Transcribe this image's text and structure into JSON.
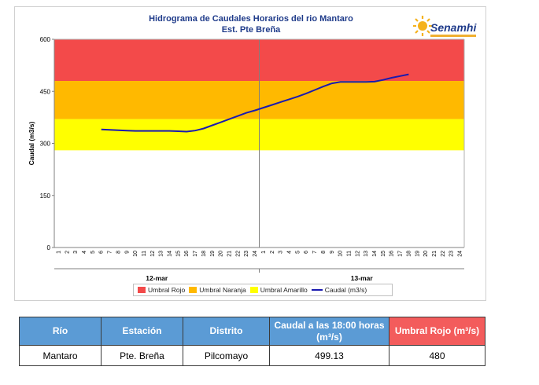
{
  "chart_data": {
    "type": "line",
    "title": "Hidrograma de Caudales Horarios del rio Mantaro",
    "subtitle": "Est. Pte Breña",
    "ylabel": "Caudal  (m3/s)",
    "ylim": [
      0,
      600
    ],
    "yticks": [
      0,
      150,
      300,
      450,
      600
    ],
    "hour_ticks": [
      "1",
      "2",
      "3",
      "4",
      "5",
      "6",
      "7",
      "8",
      "9",
      "10",
      "11",
      "12",
      "13",
      "14",
      "15",
      "16",
      "17",
      "18",
      "19",
      "20",
      "21",
      "22",
      "23",
      "24"
    ],
    "days": [
      "12-mar",
      "13-mar"
    ],
    "thresholds": [
      {
        "name": "Umbral Rojo",
        "from": 480,
        "to": 600,
        "color": "#f34a4a"
      },
      {
        "name": "Umbral Naranja",
        "from": 370,
        "to": 480,
        "color": "#ffb900"
      },
      {
        "name": "Umbral Amarillo",
        "from": 280,
        "to": 370,
        "color": "#ffff00"
      }
    ],
    "series": [
      {
        "name": "Caudal (m3/s)",
        "color": "#1a1ab0",
        "x": [
          "12-mar 6:00",
          "12-mar 7:00",
          "12-mar 8:00",
          "12-mar 9:00",
          "12-mar 10:00",
          "12-mar 11:00",
          "12-mar 12:00",
          "12-mar 13:00",
          "12-mar 14:00",
          "12-mar 15:00",
          "12-mar 16:00",
          "12-mar 17:00",
          "12-mar 18:00",
          "12-mar 19:00",
          "12-mar 20:00",
          "12-mar 21:00",
          "12-mar 22:00",
          "12-mar 23:00",
          "12-mar 24:00",
          "13-mar 1:00",
          "13-mar 2:00",
          "13-mar 3:00",
          "13-mar 4:00",
          "13-mar 5:00",
          "13-mar 6:00",
          "13-mar 7:00",
          "13-mar 8:00",
          "13-mar 9:00",
          "13-mar 10:00",
          "13-mar 11:00",
          "13-mar 12:00",
          "13-mar 13:00",
          "13-mar 14:00",
          "13-mar 15:00",
          "13-mar 16:00",
          "13-mar 17:00",
          "13-mar 18:00"
        ],
        "values": [
          340,
          339,
          338,
          337,
          336,
          336,
          336,
          336,
          336,
          335,
          334,
          337,
          343,
          352,
          361,
          370,
          379,
          388,
          395,
          403,
          411,
          419,
          427,
          435,
          444,
          454,
          464,
          473,
          477,
          477,
          477,
          477,
          478,
          483,
          489,
          494,
          499
        ]
      }
    ],
    "legend": [
      "Umbral Rojo",
      "Umbral Naranja",
      "Umbral Amarillo",
      "Caudal (m3/s)"
    ]
  },
  "logo": {
    "text": "Senamhi"
  },
  "table": {
    "headers": [
      "Río",
      "Estación",
      "Distrito",
      "Caudal a las 18:00 horas (m³/s)",
      "Umbral Rojo (m³/s)"
    ],
    "row": [
      "Mantaro",
      "Pte. Breña",
      "Pilcomayo",
      "499.13",
      "480"
    ]
  }
}
